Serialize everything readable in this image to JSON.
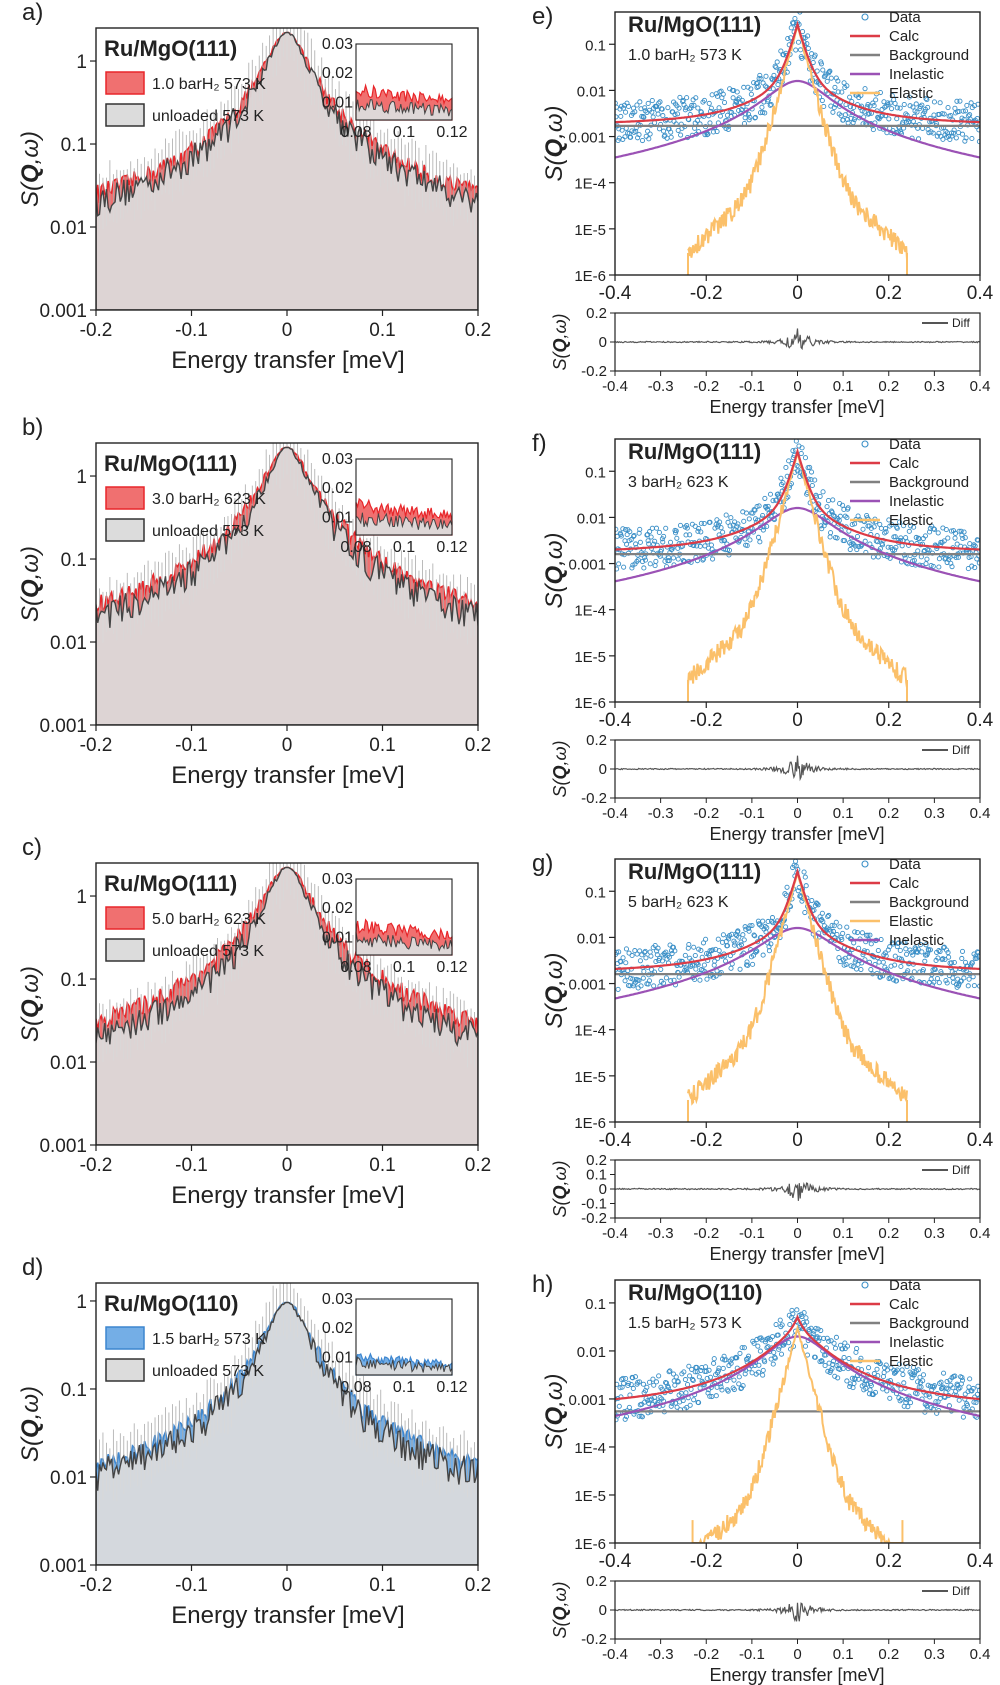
{
  "figure": {
    "colors": {
      "red": "#e8262a",
      "red_fill": "#f07070",
      "blue": "#3d86cf",
      "blue_fill": "#74aee6",
      "gray_fill": "#dcdcdc",
      "dark": "#444444",
      "data_marker": "#3a8fc7",
      "calc": "#dc3b46",
      "background": "#808080",
      "inelastic": "#9b52b5",
      "elastic": "#fbc06a",
      "sample_red": "#e8262a",
      "sample_blue": "#1f4e79"
    }
  },
  "chart_data": [
    {
      "id": "a",
      "type": "area",
      "panel_label": "a)",
      "sample": "Ru/MgO(111)",
      "sample_color": "red",
      "xlabel": "Energy transfer [meV]",
      "ylabel": "S(Q,ω)",
      "xlim": [
        -0.2,
        0.2
      ],
      "ylim": [
        0.001,
        2.5
      ],
      "yscale": "log",
      "xticks": [
        "-0.2",
        "-0.1",
        "0",
        "0.1",
        "0.2"
      ],
      "yticks": [
        "0.001",
        "0.01",
        "0.1",
        "1"
      ],
      "legend": [
        "1.0 barH₂ 573 K",
        "unloaded 573 K"
      ],
      "loaded": {
        "peak": 2.3,
        "floor": 0.0052,
        "halfwidth": 0.019
      },
      "unloaded": {
        "peak": 2.3,
        "floor": 0.0043,
        "halfwidth": 0.018
      },
      "inset": {
        "xlim": [
          0.08,
          0.12
        ],
        "ylim": [
          0.004,
          0.03
        ],
        "xticks": [
          "0.08",
          "0.1",
          "0.12"
        ],
        "yticks": [
          "0.03",
          "0.02",
          "0.01"
        ]
      }
    },
    {
      "id": "b",
      "type": "area",
      "panel_label": "b)",
      "sample": "Ru/MgO(111)",
      "sample_color": "red",
      "xlabel": "Energy transfer [meV]",
      "ylabel": "S(Q,ω)",
      "xlim": [
        -0.2,
        0.2
      ],
      "ylim": [
        0.001,
        2.5
      ],
      "yscale": "log",
      "xticks": [
        "-0.2",
        "-0.1",
        "0",
        "0.1",
        "0.2"
      ],
      "yticks": [
        "0.001",
        "0.01",
        "0.1",
        "1"
      ],
      "legend": [
        "3.0 barH₂ 623 K",
        "unloaded 573 K"
      ],
      "loaded": {
        "peak": 2.3,
        "floor": 0.0058,
        "halfwidth": 0.02
      },
      "unloaded": {
        "peak": 2.3,
        "floor": 0.0043,
        "halfwidth": 0.018
      },
      "inset": {
        "xlim": [
          0.08,
          0.12
        ],
        "ylim": [
          0.004,
          0.03
        ],
        "xticks": [
          "0.08",
          "0.1",
          "0.12"
        ],
        "yticks": [
          "0.03",
          "0.02",
          "0.01"
        ]
      }
    },
    {
      "id": "c",
      "type": "area",
      "panel_label": "c)",
      "sample": "Ru/MgO(111)",
      "sample_color": "red",
      "xlabel": "Energy transfer [meV]",
      "ylabel": "S(Q,ω)",
      "xlim": [
        -0.2,
        0.2
      ],
      "ylim": [
        0.001,
        2.5
      ],
      "yscale": "log",
      "xticks": [
        "-0.2",
        "-0.1",
        "0",
        "0.1",
        "0.2"
      ],
      "yticks": [
        "0.001",
        "0.01",
        "0.1",
        "1"
      ],
      "legend": [
        "5.0 barH₂ 623 K",
        "unloaded 573 K"
      ],
      "loaded": {
        "peak": 2.3,
        "floor": 0.006,
        "halfwidth": 0.021
      },
      "unloaded": {
        "peak": 2.3,
        "floor": 0.0043,
        "halfwidth": 0.018
      },
      "inset": {
        "xlim": [
          0.08,
          0.12
        ],
        "ylim": [
          0.004,
          0.03
        ],
        "xticks": [
          "0.08",
          "0.1",
          "0.12"
        ],
        "yticks": [
          "0.03",
          "0.02",
          "0.01"
        ]
      }
    },
    {
      "id": "d",
      "type": "area",
      "panel_label": "d)",
      "sample": "Ru/MgO(110)",
      "sample_color": "blue",
      "xlabel": "Energy transfer [meV]",
      "ylabel": "S(Q,ω)",
      "xlim": [
        -0.2,
        0.2
      ],
      "ylim": [
        0.001,
        1.6
      ],
      "yscale": "log",
      "xticks": [
        "-0.2",
        "-0.1",
        "0",
        "0.1",
        "0.2"
      ],
      "yticks": [
        "0.001",
        "0.01",
        "0.1",
        "1"
      ],
      "legend": [
        "1.5 barH₂ 573 K",
        "unloaded 573 K"
      ],
      "loaded": {
        "peak": 1.0,
        "floor": 0.0035,
        "halfwidth": 0.02
      },
      "unloaded": {
        "peak": 1.0,
        "floor": 0.0031,
        "halfwidth": 0.019
      },
      "inset": {
        "xlim": [
          0.08,
          0.12
        ],
        "ylim": [
          0.004,
          0.03
        ],
        "xticks": [
          "0.08",
          "0.1",
          "0.12"
        ],
        "yticks": [
          "0.03",
          "0.02",
          "0.01"
        ]
      }
    },
    {
      "id": "e",
      "type": "scatter",
      "panel_label": "e)",
      "sample": "Ru/MgO(111)",
      "sample_color": "red",
      "condition": "1.0 barH₂ 573 K",
      "ylabel": "S(Q,ω)",
      "xlabel": "Energy transfer [meV]",
      "xlim": [
        -0.4,
        0.4
      ],
      "ylim": [
        1e-06,
        0.5
      ],
      "yscale": "log",
      "xticks": [
        "-0.4",
        "-0.2",
        "0",
        "0.2",
        "0.4"
      ],
      "yticks": [
        "1E-6",
        "1E-5",
        "1E-4",
        "0.001",
        "0.01",
        "0.1"
      ],
      "legend": [
        "Data",
        "Calc",
        "Background",
        "Inelastic",
        "Elastic"
      ],
      "background_level": 0.0017,
      "inelastic_peak": 0.016,
      "inelastic_width": 0.06,
      "elastic_peak": 0.25,
      "elastic_cut": 0.24,
      "diff": {
        "ylabel": "S(Q,ω)",
        "ylim": [
          -0.2,
          0.2
        ],
        "yticks": [
          "0.2",
          "0",
          "-0.2"
        ],
        "xticks": [
          "-0.4",
          "-0.3",
          "-0.2",
          "-0.1",
          "0",
          "0.1",
          "0.2",
          "0.3",
          "0.4"
        ],
        "legend": "Diff"
      }
    },
    {
      "id": "f",
      "type": "scatter",
      "panel_label": "f)",
      "sample": "Ru/MgO(111)",
      "sample_color": "red",
      "condition": "3 barH₂ 623 K",
      "ylabel": "S(Q,ω)",
      "xlabel": "Energy transfer [meV]",
      "xlim": [
        -0.4,
        0.4
      ],
      "ylim": [
        1e-06,
        0.5
      ],
      "yscale": "log",
      "xticks": [
        "-0.4",
        "-0.2",
        "0",
        "0.2",
        "0.4"
      ],
      "yticks": [
        "1E-6",
        "1E-5",
        "1E-4",
        "0.001",
        "0.01",
        "0.1"
      ],
      "legend": [
        "Data",
        "Calc",
        "Background",
        "Inelastic",
        "Elastic"
      ],
      "background_level": 0.0016,
      "inelastic_peak": 0.016,
      "inelastic_width": 0.065,
      "elastic_peak": 0.25,
      "elastic_cut": 0.24,
      "diff": {
        "ylabel": "S(Q,ω)",
        "ylim": [
          -0.2,
          0.2
        ],
        "yticks": [
          "0.2",
          "0",
          "-0.2"
        ],
        "xticks": [
          "-0.4",
          "-0.3",
          "-0.2",
          "-0.1",
          "0",
          "0.1",
          "0.2",
          "0.3",
          "0.4"
        ],
        "legend": "Diff"
      }
    },
    {
      "id": "g",
      "type": "scatter",
      "panel_label": "g)",
      "sample": "Ru/MgO(111)",
      "sample_color": "red",
      "condition": "5 barH₂ 623 K",
      "ylabel": "S(Q,ω)",
      "xlabel": "Energy transfer [meV]",
      "xlim": [
        -0.4,
        0.4
      ],
      "ylim": [
        1e-06,
        0.5
      ],
      "yscale": "log",
      "xticks": [
        "-0.4",
        "-0.2",
        "0",
        "0.2",
        "0.4"
      ],
      "yticks": [
        "1E-6",
        "1E-5",
        "1E-4",
        "0.001",
        "0.01",
        "0.1"
      ],
      "legend": [
        "Data",
        "Calc",
        "Background",
        "Elastic",
        "Inelastic"
      ],
      "background_level": 0.0016,
      "inelastic_peak": 0.016,
      "inelastic_width": 0.07,
      "elastic_peak": 0.25,
      "elastic_cut": 0.24,
      "diff": {
        "ylabel": "S(Q,ω)",
        "ylim": [
          -0.2,
          0.2
        ],
        "yticks": [
          "0.2",
          "0.1",
          "0",
          "-0.1",
          "-0.2"
        ],
        "xticks": [
          "-0.4",
          "-0.3",
          "-0.2",
          "-0.1",
          "0",
          "0.1",
          "0.2",
          "0.3",
          "0.4"
        ],
        "legend": "Diff"
      }
    },
    {
      "id": "h",
      "type": "scatter",
      "panel_label": "h)",
      "sample": "Ru/MgO(110)",
      "sample_color": "blue",
      "condition": "1.5 barH₂ 573 K",
      "ylabel": "S(Q,ω)",
      "xlabel": "Energy transfer [meV]",
      "xlim": [
        -0.4,
        0.4
      ],
      "ylim": [
        1e-06,
        0.3
      ],
      "yscale": "log",
      "xticks": [
        "-0.4",
        "-0.2",
        "0",
        "0.2",
        "0.4"
      ],
      "yticks": [
        "1E-6",
        "1E-5",
        "1E-4",
        "0.001",
        "0.01",
        "0.1"
      ],
      "legend": [
        "Data",
        "Calc",
        "Background",
        "Inelastic",
        "Elastic"
      ],
      "background_level": 0.00055,
      "inelastic_peak": 0.02,
      "inelastic_width": 0.06,
      "elastic_peak": 0.03,
      "elastic_cut": 0.23,
      "diff": {
        "ylabel": "S(Q,ω)",
        "ylim": [
          -0.2,
          0.2
        ],
        "yticks": [
          "0.2",
          "0",
          "-0.2"
        ],
        "xticks": [
          "-0.4",
          "-0.3",
          "-0.2",
          "-0.1",
          "0",
          "0.1",
          "0.2",
          "0.3",
          "0.4"
        ],
        "legend": "Diff"
      }
    }
  ]
}
